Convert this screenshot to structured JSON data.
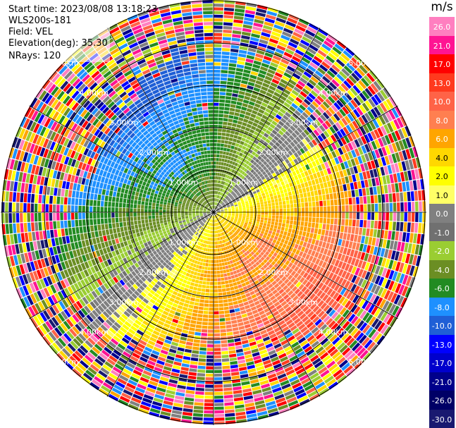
{
  "header": {
    "start_time": "Start time: 2023/08/08 13:18:23",
    "station": "WLS200s-181",
    "field": "Field: VEL",
    "elevation": "Elevation(deg): 35.30",
    "nrays": "NRays: 120"
  },
  "colorbar": {
    "unit": "m/s",
    "ticks": [
      "26.0",
      "21.0",
      "17.0",
      "13.0",
      "10.0",
      "8.0",
      "6.0",
      "4.0",
      "2.0",
      "1.0",
      "0.0",
      "-1.0",
      "-2.0",
      "-4.0",
      "-6.0",
      "-8.0",
      "-10.0",
      "-13.0",
      "-17.0",
      "-21.0",
      "-26.0",
      "-30.0"
    ],
    "colors": [
      "#ff7fc0",
      "#ff1493",
      "#ff0000",
      "#ff3a1e",
      "#ff6347",
      "#ff7f50",
      "#ffa500",
      "#ffd700",
      "#ffff00",
      "#ffff66",
      "#808080",
      "#707070",
      "#9acd32",
      "#6b8e23",
      "#228b22",
      "#1e90ff",
      "#1f5fd6",
      "#0000ff",
      "#0000cd",
      "#00008b",
      "#000066",
      "#191970"
    ]
  },
  "chart_data": {
    "type": "ppi_scan",
    "field": "VEL",
    "unit": "m/s",
    "nrays": 120,
    "elevation_deg": 35.3,
    "range_rings": [
      "1.00km",
      "2.00km",
      "3.00km",
      "4.00km",
      "5.00km"
    ]
  }
}
